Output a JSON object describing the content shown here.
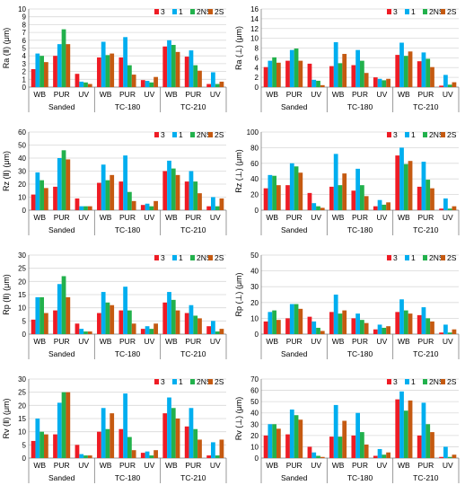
{
  "colors": {
    "3": "#ee1c25",
    "1": "#00aeef",
    "2NS": "#22b14c",
    "2S": "#c55a11"
  },
  "chart_data": [
    {
      "type": "bar",
      "ylabel": "Ra (Ⅱ) (μm)",
      "ylim": [
        0,
        10
      ],
      "ytick_step": 1,
      "categories": [
        "WB",
        "PUR",
        "UV",
        "WB",
        "PUR",
        "UV",
        "WB",
        "PUR",
        "UV"
      ],
      "groups": [
        "Sanded",
        "TC-180",
        "TC-210"
      ],
      "series": [
        {
          "name": "3",
          "values": [
            2.3,
            4.0,
            1.7,
            3.8,
            3.8,
            0.9,
            5.2,
            3.9,
            0.4
          ]
        },
        {
          "name": "1",
          "values": [
            4.3,
            5.5,
            0.7,
            5.8,
            6.4,
            0.8,
            6.0,
            4.7,
            1.9
          ]
        },
        {
          "name": "2NS",
          "values": [
            4.0,
            7.4,
            0.6,
            4.1,
            2.8,
            0.6,
            5.4,
            2.8,
            0.4
          ]
        },
        {
          "name": "2S",
          "values": [
            3.2,
            5.5,
            0.4,
            4.3,
            1.6,
            1.3,
            4.5,
            2.1,
            0.7
          ]
        }
      ]
    },
    {
      "type": "bar",
      "ylabel": "Ra (⊥) (μm)",
      "ylim": [
        0,
        16
      ],
      "ytick_step": 2,
      "categories": [
        "WB",
        "PUR",
        "UV",
        "WB",
        "PUR",
        "UV",
        "WB",
        "PUR",
        "UV"
      ],
      "groups": [
        "Sanded",
        "TC-180",
        "TC-210"
      ],
      "series": [
        {
          "name": "3",
          "values": [
            4.1,
            5.4,
            4.8,
            4.3,
            4.5,
            2.0,
            6.6,
            5.3,
            0.3
          ]
        },
        {
          "name": "1",
          "values": [
            5.4,
            7.6,
            1.5,
            9.2,
            7.6,
            1.7,
            9.1,
            7.1,
            2.5
          ]
        },
        {
          "name": "2NS",
          "values": [
            6.1,
            7.9,
            1.3,
            4.9,
            5.4,
            1.4,
            6.4,
            5.8,
            0.5
          ]
        },
        {
          "name": "2S",
          "values": [
            5.0,
            5.4,
            0.4,
            6.8,
            2.9,
            1.7,
            7.3,
            4.1,
            1.0
          ]
        }
      ]
    },
    {
      "type": "bar",
      "ylabel": "Rz (Ⅱ)  (μm)",
      "ylim": [
        0,
        60
      ],
      "ytick_step": 10,
      "categories": [
        "WB",
        "PUR",
        "UV",
        "WB",
        "PUR",
        "UV",
        "WB",
        "PUR",
        "UV"
      ],
      "groups": [
        "Sanded",
        "TC-180",
        "TC-210"
      ],
      "series": [
        {
          "name": "3",
          "values": [
            12,
            18,
            9,
            21,
            22,
            4,
            30,
            22,
            3
          ]
        },
        {
          "name": "1",
          "values": [
            29,
            40,
            3,
            35,
            42,
            5,
            38,
            30,
            10
          ]
        },
        {
          "name": "2NS",
          "values": [
            23,
            46,
            3,
            23,
            14,
            3,
            32,
            22,
            3
          ]
        },
        {
          "name": "2S",
          "values": [
            17,
            39,
            3,
            27,
            7,
            7,
            27,
            13,
            9
          ]
        }
      ]
    },
    {
      "type": "bar",
      "ylabel": "Rz (⊥)  (μm)",
      "ylim": [
        0,
        100
      ],
      "ytick_step": 20,
      "categories": [
        "WB",
        "PUR",
        "UV",
        "WB",
        "PUR",
        "UV",
        "WB",
        "PUR",
        "UV"
      ],
      "groups": [
        "Sanded",
        "TC-180",
        "TC-210"
      ],
      "series": [
        {
          "name": "3",
          "values": [
            28,
            32,
            22,
            30,
            25,
            5,
            70,
            30,
            2
          ]
        },
        {
          "name": "1",
          "values": [
            45,
            60,
            9,
            72,
            53,
            13,
            80,
            62,
            15
          ]
        },
        {
          "name": "2NS",
          "values": [
            44,
            56,
            5,
            32,
            32,
            7,
            59,
            39,
            2
          ]
        },
        {
          "name": "2S",
          "values": [
            32,
            48,
            3,
            47,
            18,
            10,
            63,
            28,
            5
          ]
        }
      ]
    },
    {
      "type": "bar",
      "ylabel": "Rp (Ⅱ) (μm)",
      "ylim": [
        0,
        30
      ],
      "ytick_step": 5,
      "categories": [
        "WB",
        "PUR",
        "UV",
        "WB",
        "PUR",
        "UV",
        "WB",
        "PUR",
        "UV"
      ],
      "groups": [
        "Sanded",
        "TC-180",
        "TC-210"
      ],
      "series": [
        {
          "name": "3",
          "values": [
            5.5,
            9,
            4,
            8,
            9,
            2,
            12,
            8,
            3
          ]
        },
        {
          "name": "1",
          "values": [
            14,
            19,
            2,
            16,
            18,
            3,
            16,
            11,
            5
          ]
        },
        {
          "name": "2NS",
          "values": [
            14,
            22,
            1,
            12,
            9,
            2,
            13,
            7,
            1
          ]
        },
        {
          "name": "2S",
          "values": [
            8,
            14,
            1,
            11,
            4,
            4,
            9,
            6,
            2
          ]
        }
      ]
    },
    {
      "type": "bar",
      "ylabel": "Rp (⊥) (μm)",
      "ylim": [
        0,
        50
      ],
      "ytick_step": 10,
      "categories": [
        "WB",
        "PUR",
        "UV",
        "WB",
        "PUR",
        "UV",
        "WB",
        "PUR",
        "UV"
      ],
      "groups": [
        "Sanded",
        "TC-180",
        "TC-210"
      ],
      "series": [
        {
          "name": "3",
          "values": [
            8,
            10,
            11,
            14,
            10,
            3,
            14,
            12,
            1
          ]
        },
        {
          "name": "1",
          "values": [
            14,
            19,
            8,
            25,
            13,
            6,
            22,
            17,
            6
          ]
        },
        {
          "name": "2NS",
          "values": [
            15,
            19,
            4,
            13,
            9,
            4,
            15,
            10,
            1
          ]
        },
        {
          "name": "2S",
          "values": [
            9,
            16,
            2,
            15,
            7,
            5,
            13,
            8,
            3
          ]
        }
      ]
    },
    {
      "type": "bar",
      "ylabel": "Rv (Ⅱ) (μm)",
      "ylim": [
        0,
        30
      ],
      "ytick_step": 5,
      "categories": [
        "WB",
        "PUR",
        "UV",
        "WB",
        "PUR",
        "UV",
        "WB",
        "PUR",
        "UV"
      ],
      "groups": [
        "Sanded",
        "TC-180",
        "TC-210"
      ],
      "series": [
        {
          "name": "3",
          "values": [
            6.5,
            9,
            5,
            10,
            11,
            2,
            17,
            12,
            1
          ]
        },
        {
          "name": "1",
          "values": [
            15,
            21,
            1.5,
            19,
            24.5,
            2.5,
            23,
            19,
            6
          ]
        },
        {
          "name": "2NS",
          "values": [
            10,
            25,
            1,
            11,
            8,
            1,
            19,
            11,
            1
          ]
        },
        {
          "name": "2S",
          "values": [
            9,
            25,
            1,
            17,
            3,
            3,
            15,
            7,
            7
          ]
        }
      ]
    },
    {
      "type": "bar",
      "ylabel": "Rv (⊥)  (μm)",
      "ylim": [
        0,
        70
      ],
      "ytick_step": 10,
      "categories": [
        "WB",
        "PUR",
        "UV",
        "WB",
        "PUR",
        "UV",
        "WB",
        "PUR",
        "UV"
      ],
      "groups": [
        "Sanded",
        "TC-180",
        "TC-210"
      ],
      "series": [
        {
          "name": "3",
          "values": [
            20,
            21,
            10,
            19,
            20,
            2,
            52,
            20,
            1
          ]
        },
        {
          "name": "1",
          "values": [
            30,
            43,
            5,
            47,
            40,
            8,
            59,
            49,
            10
          ]
        },
        {
          "name": "2NS",
          "values": [
            30,
            38,
            2,
            19,
            23,
            3,
            42,
            30,
            1
          ]
        },
        {
          "name": "2S",
          "values": [
            26,
            34,
            1,
            33,
            12,
            5,
            51,
            23,
            3
          ]
        }
      ]
    }
  ]
}
